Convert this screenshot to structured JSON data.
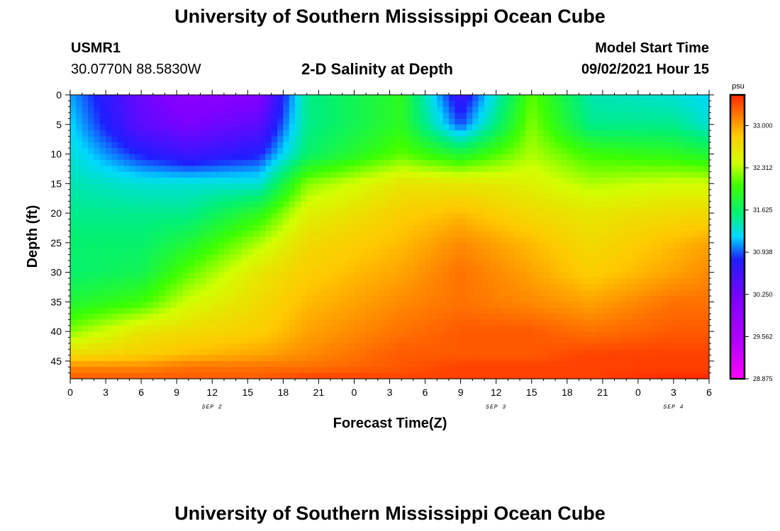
{
  "header": {
    "title": "University of Southern Mississippi Ocean Cube",
    "station": "USMR1",
    "coords": "30.0770N  88.5830W",
    "subtitle": "2-D Salinity at Depth",
    "model_label": "Model Start Time",
    "model_time": "09/02/2021 Hour 15"
  },
  "footer": {
    "title": "University of Southern Mississippi Ocean Cube"
  },
  "chart_data": {
    "type": "heatmap",
    "title": "2-D Salinity at Depth",
    "xlabel": "Forecast Time(Z)",
    "ylabel": "Depth (ft)",
    "x_tick_labels": [
      "0",
      "3",
      "6",
      "9",
      "12",
      "15",
      "18",
      "21",
      "0",
      "3",
      "6",
      "9",
      "12",
      "15",
      "18",
      "21",
      "0",
      "3",
      "6"
    ],
    "date_labels": [
      {
        "text": "SEP 2",
        "x_index": 4
      },
      {
        "text": "SEP 3",
        "x_index": 12
      },
      {
        "text": "SEP 4",
        "x_index": 17
      }
    ],
    "y_tick_labels": [
      "0",
      "5",
      "10",
      "15",
      "20",
      "25",
      "30",
      "35",
      "40",
      "45"
    ],
    "y_ticks": [
      0,
      5,
      10,
      15,
      20,
      25,
      30,
      35,
      40,
      45
    ],
    "xlim": [
      0,
      54
    ],
    "ylim": [
      0,
      48
    ],
    "grid": false,
    "colorbar": {
      "unit": "psu",
      "ticks": [
        "33.000",
        "32.312",
        "31.625",
        "30.938",
        "30.250",
        "29.562",
        "28.875"
      ],
      "min": 28.875,
      "max": 33.5
    },
    "salinity_grid": {
      "hours": [
        0,
        6,
        10,
        16,
        20,
        28,
        33,
        39,
        44,
        51,
        54
      ],
      "depths": [
        0,
        5,
        10,
        15,
        20,
        25,
        30,
        35,
        40,
        44,
        46,
        48
      ],
      "values": [
        [
          31.1,
          30.3,
          30.0,
          30.1,
          31.5,
          31.9,
          30.6,
          32.1,
          31.4,
          31.3,
          31.2
        ],
        [
          31.2,
          30.4,
          30.2,
          30.4,
          31.5,
          31.9,
          30.9,
          32.2,
          31.5,
          31.5,
          31.3
        ],
        [
          31.3,
          30.8,
          30.6,
          30.8,
          31.6,
          32.1,
          31.8,
          32.3,
          32.0,
          31.9,
          31.8
        ],
        [
          31.4,
          31.3,
          31.3,
          31.3,
          32.2,
          32.6,
          32.6,
          32.5,
          32.3,
          32.4,
          32.4
        ],
        [
          31.5,
          31.5,
          31.5,
          31.9,
          32.5,
          32.8,
          32.9,
          32.7,
          32.6,
          32.7,
          32.7
        ],
        [
          31.6,
          31.6,
          31.8,
          32.3,
          32.7,
          32.9,
          33.1,
          32.9,
          32.7,
          32.9,
          33.0
        ],
        [
          31.6,
          31.7,
          32.1,
          32.6,
          32.8,
          33.0,
          33.2,
          33.0,
          32.8,
          33.0,
          33.1
        ],
        [
          31.8,
          32.0,
          32.4,
          32.7,
          32.9,
          33.1,
          33.2,
          33.1,
          33.0,
          33.2,
          33.2
        ],
        [
          32.2,
          32.6,
          32.7,
          32.8,
          33.0,
          33.2,
          33.3,
          33.3,
          33.2,
          33.3,
          33.3
        ],
        [
          32.7,
          32.8,
          32.9,
          33.0,
          33.1,
          33.3,
          33.3,
          33.3,
          33.4,
          33.4,
          33.4
        ],
        [
          33.1,
          33.1,
          33.2,
          33.2,
          33.2,
          33.3,
          33.4,
          33.4,
          33.4,
          33.4,
          33.4
        ],
        [
          33.3,
          33.3,
          33.3,
          33.3,
          33.4,
          33.4,
          33.4,
          33.4,
          33.4,
          33.5,
          33.5
        ]
      ]
    }
  }
}
